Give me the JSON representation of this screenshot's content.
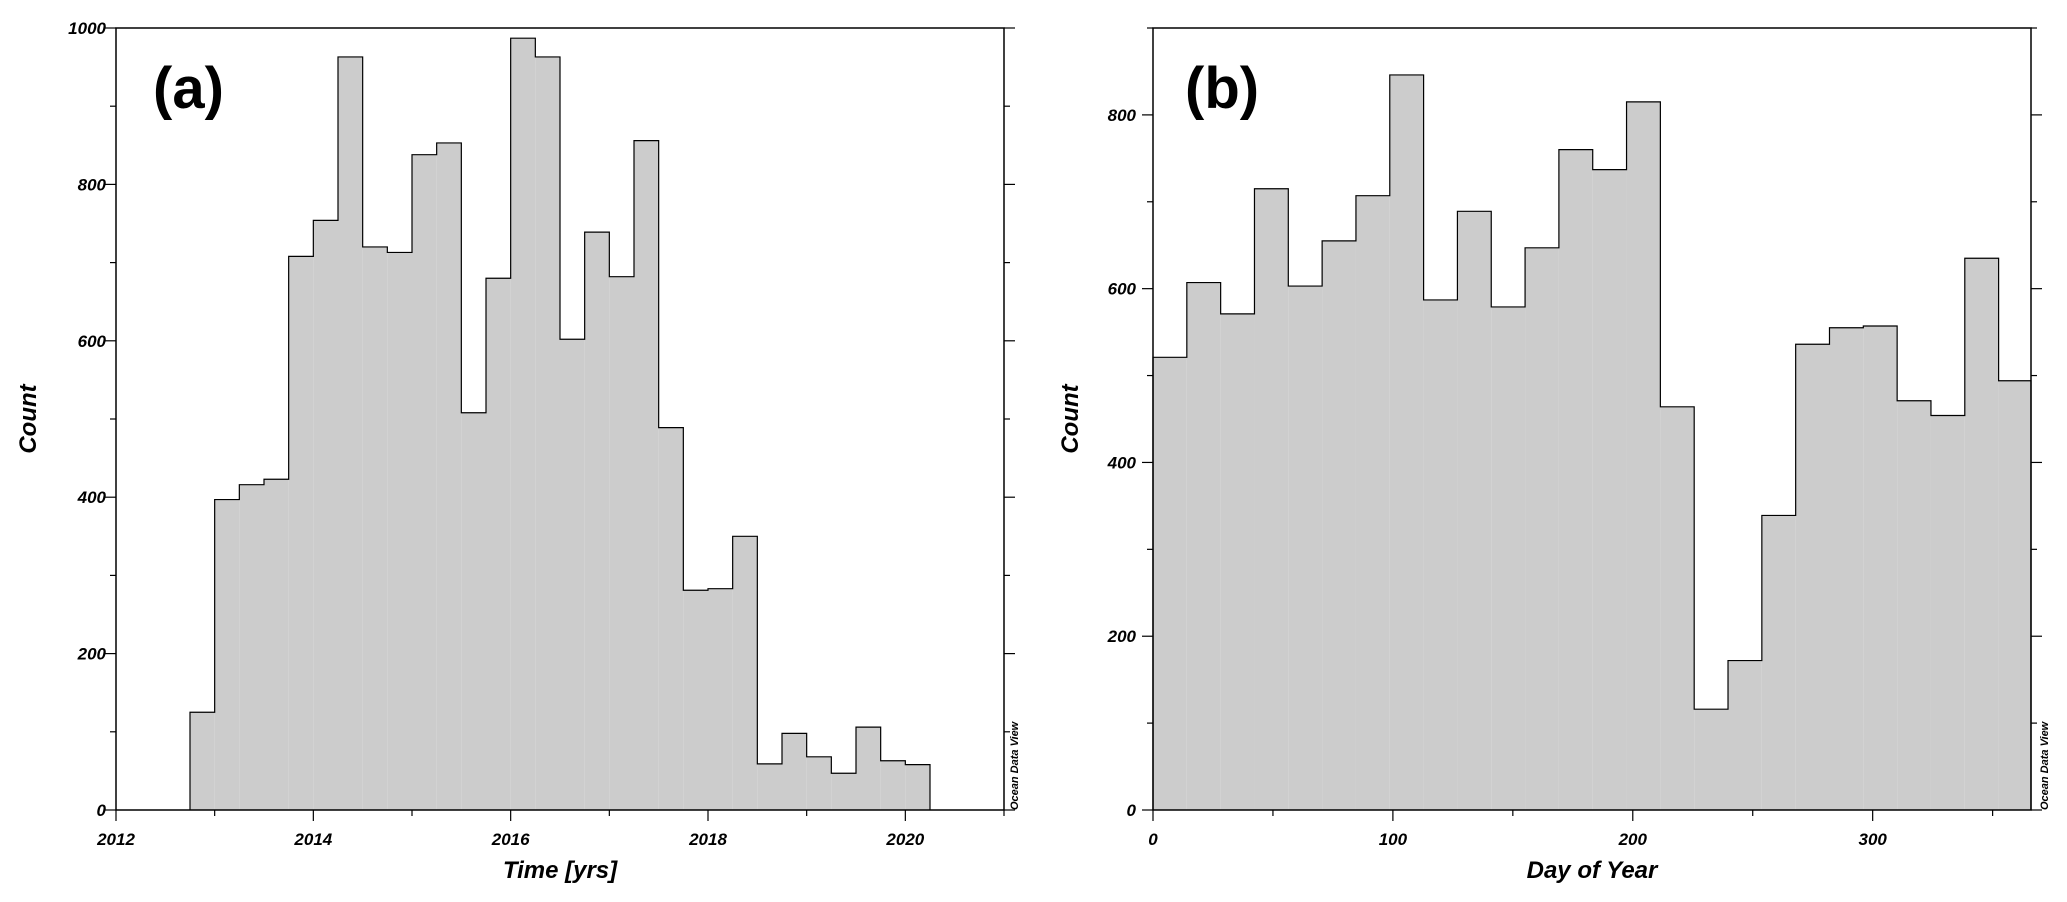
{
  "chart_data": [
    {
      "type": "bar",
      "panel_label": "(a)",
      "xlabel": "Time [yrs]",
      "ylabel": "Count",
      "xlim": [
        2012,
        2021
      ],
      "ylim": [
        0,
        1000
      ],
      "x_ticks": [
        2012,
        2014,
        2016,
        2018,
        2020
      ],
      "y_ticks": [
        0,
        200,
        400,
        600,
        800,
        1000
      ],
      "bin_start": 2012.75,
      "bin_width": 0.25,
      "values": [
        125,
        397,
        416,
        423,
        708,
        754,
        963,
        720,
        713,
        838,
        853,
        508,
        680,
        987,
        963,
        602,
        739,
        682,
        856,
        489,
        281,
        283,
        350,
        59,
        98,
        68,
        47,
        106,
        63,
        58
      ],
      "fill_color": "#cccccc",
      "watermark": "Ocean Data View",
      "grid": false
    },
    {
      "type": "bar",
      "panel_label": "(b)",
      "xlabel": "Day of Year",
      "ylabel": "Count",
      "xlim": [
        0,
        366
      ],
      "ylim": [
        0,
        900
      ],
      "x_ticks": [
        0,
        100,
        200,
        300
      ],
      "y_ticks": [
        0,
        200,
        400,
        600,
        800
      ],
      "bin_start": 0,
      "bin_width": 14.1,
      "values": [
        521,
        607,
        571,
        715,
        603,
        655,
        707,
        846,
        587,
        689,
        579,
        647,
        760,
        737,
        815,
        464,
        116,
        172,
        339,
        536,
        555,
        557,
        471,
        454,
        635,
        494
      ],
      "fill_color": "#cccccc",
      "watermark": "Ocean Data View",
      "grid": false
    }
  ]
}
